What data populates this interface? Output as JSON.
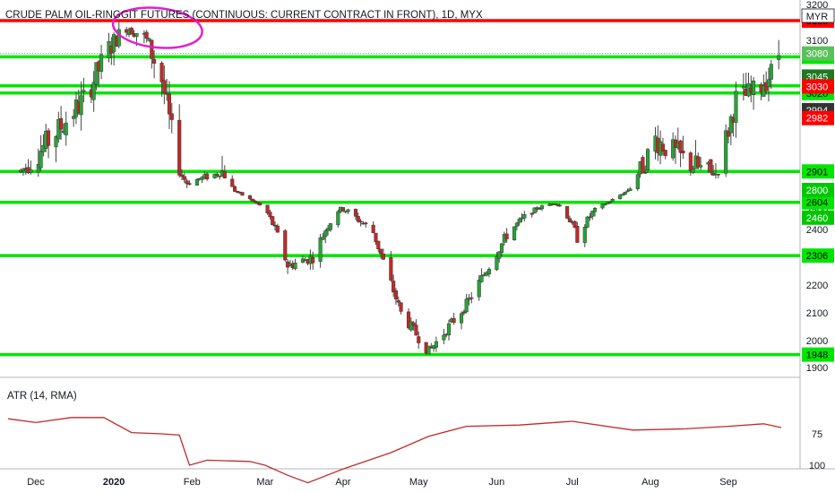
{
  "chart_data": [
    {
      "type": "candlestick",
      "title": "CRUDE PALM OIL-RINGGIT FUTURES (CONTINUOUS: CURRENT CONTRACT IN FRONT), 1D, MYX",
      "currency": "MYR",
      "ylim": [
        1860,
        3210
      ],
      "y_ticks": [
        1900,
        2000,
        2100,
        2200,
        2300,
        2400,
        2500,
        2600,
        2800,
        2900,
        3100,
        3200
      ],
      "x_ticks": [
        "Dec",
        "2020",
        "Feb",
        "Mar",
        "Apr",
        "May",
        "Jun",
        "Jul",
        "Aug",
        "Sep"
      ],
      "horizontal_levels": [
        {
          "value": 3155,
          "color": "#ff0000",
          "label": "3155"
        },
        {
          "value": 3075,
          "color": "#00e600",
          "label": "3075"
        },
        {
          "value": 3031,
          "color": "#00e600",
          "label": "3031"
        },
        {
          "value": 3020,
          "color": "#00e600",
          "label": "3020"
        },
        {
          "value": 2901,
          "color": "#00e600",
          "label": "2901"
        },
        {
          "value": 2604,
          "color": "#00e600",
          "label": "2604"
        },
        {
          "value": 2306,
          "color": "#00e600",
          "label": "2306"
        },
        {
          "value": 1948,
          "color": "#00e600",
          "label": "1948"
        }
      ],
      "price_tags": [
        {
          "label": "3080",
          "value": 3080,
          "bg": "#5cc05c"
        },
        {
          "label": "3045",
          "value": 3045,
          "bg": "#1f7a1f"
        },
        {
          "label": "3030",
          "value": 3030,
          "bg": "#ff0000"
        },
        {
          "label": "2994",
          "value": 2994,
          "bg": "#333333"
        },
        {
          "label": "2982",
          "value": 2982,
          "bg": "#ff0000"
        },
        {
          "label": "2800",
          "value": 2800,
          "bg": "#00c800"
        },
        {
          "label": "2460",
          "value": 2460,
          "bg": "#00c800"
        }
      ],
      "anchors": [
        [
          "2019-11-25",
          2900
        ],
        [
          "2019-12-09",
          2960
        ],
        [
          "2019-12-20",
          3010
        ],
        [
          "2020-01-06",
          3140
        ],
        [
          "2020-01-13",
          3110
        ],
        [
          "2020-01-20",
          3040
        ],
        [
          "2020-01-30",
          2840
        ],
        [
          "2020-02-13",
          2900
        ],
        [
          "2020-02-28",
          2560
        ],
        [
          "2020-03-10",
          2270
        ],
        [
          "2020-03-20",
          2300
        ],
        [
          "2020-03-31",
          2520
        ],
        [
          "2020-04-13",
          2390
        ],
        [
          "2020-04-24",
          2100
        ],
        [
          "2020-05-05",
          1960
        ],
        [
          "2020-05-20",
          2130
        ],
        [
          "2020-06-05",
          2380
        ],
        [
          "2020-06-24",
          2600
        ],
        [
          "2020-07-03",
          2370
        ],
        [
          "2020-07-16",
          2620
        ],
        [
          "2020-07-27",
          2890
        ],
        [
          "2020-08-03",
          2950
        ],
        [
          "2020-08-14",
          2920
        ],
        [
          "2020-08-27",
          2890
        ],
        [
          "2020-09-04",
          3010
        ],
        [
          "2020-09-11",
          3020
        ],
        [
          "2020-09-18",
          3050
        ],
        [
          "2020-09-21",
          3080
        ]
      ],
      "annotations": [
        {
          "type": "ellipse",
          "color": "#e020d0",
          "center": [
            "2020-01-13",
            3140
          ]
        }
      ]
    },
    {
      "type": "line",
      "title": "ATR (14, RMA)",
      "y_ticks": [
        75,
        100
      ],
      "ylim": [
        55,
        118
      ],
      "color": "#c62828",
      "points": [
        [
          "2019-11-20",
          63
        ],
        [
          "2019-12-01",
          66
        ],
        [
          "2019-12-15",
          62
        ],
        [
          "2019-12-28",
          62
        ],
        [
          "2020-01-08",
          74
        ],
        [
          "2020-01-20",
          75
        ],
        [
          "2020-01-27",
          76
        ],
        [
          "2020-01-31",
          100
        ],
        [
          "2020-02-07",
          96
        ],
        [
          "2020-02-24",
          97
        ],
        [
          "2020-03-01",
          100
        ],
        [
          "2020-03-10",
          108
        ],
        [
          "2020-03-18",
          114
        ],
        [
          "2020-04-01",
          103
        ],
        [
          "2020-04-20",
          90
        ],
        [
          "2020-05-05",
          77
        ],
        [
          "2020-05-20",
          69
        ],
        [
          "2020-06-10",
          68
        ],
        [
          "2020-07-01",
          65
        ],
        [
          "2020-07-25",
          72
        ],
        [
          "2020-08-15",
          71
        ],
        [
          "2020-09-01",
          69
        ],
        [
          "2020-09-15",
          67
        ],
        [
          "2020-09-22",
          70
        ]
      ]
    }
  ]
}
